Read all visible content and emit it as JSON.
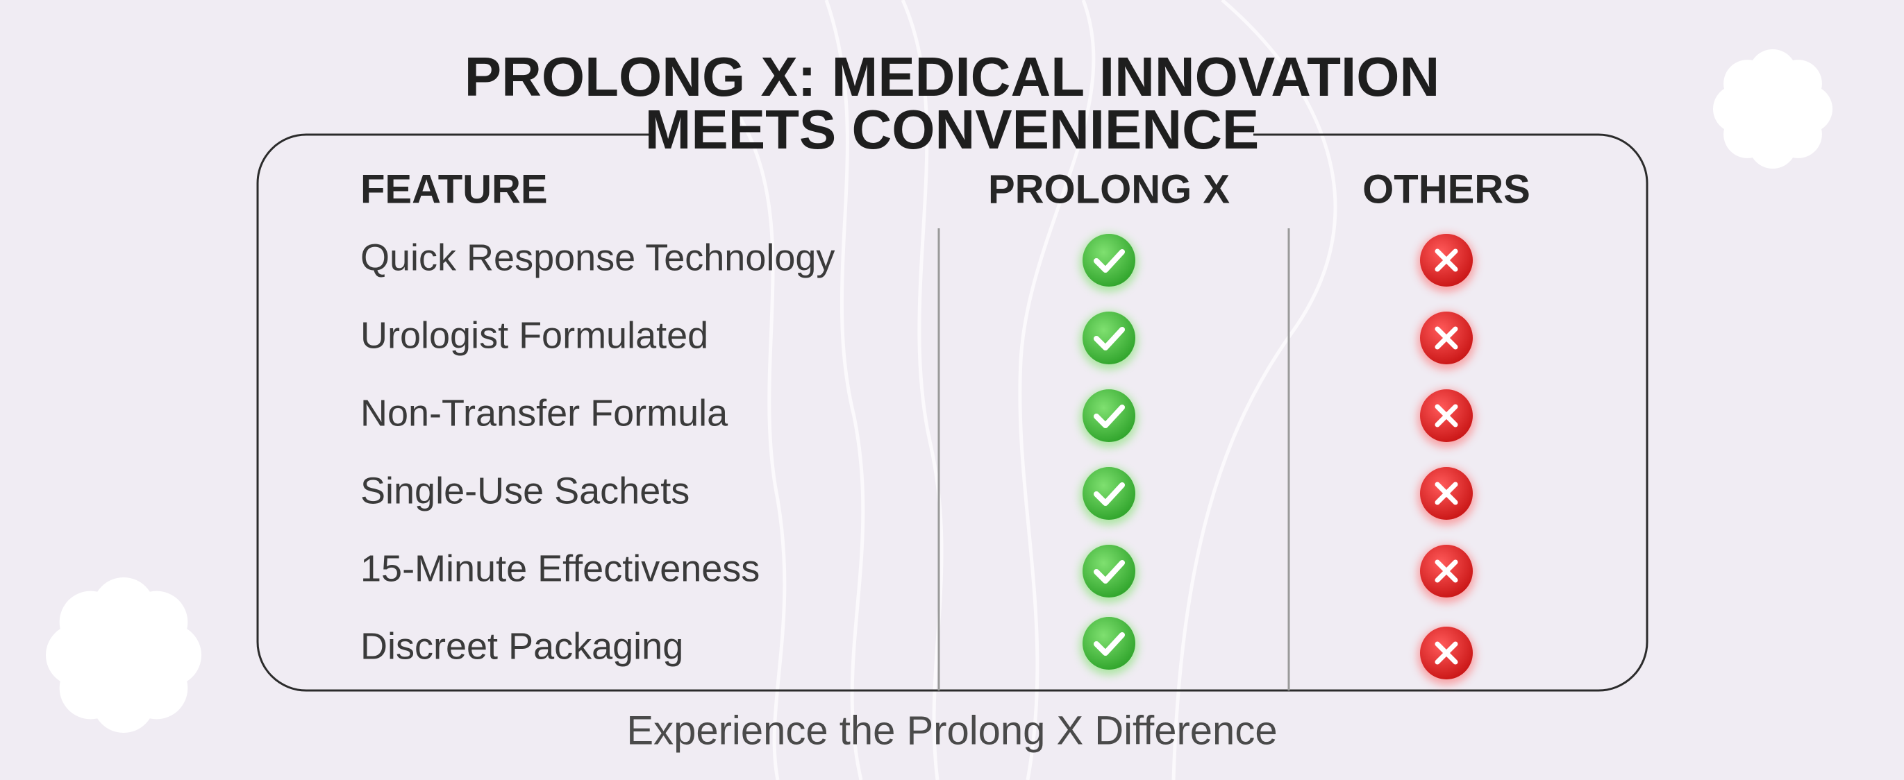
{
  "title": {
    "lines": [
      "PROLONG X: MEDICAL INNOVATION",
      "MEETS CONVENIENCE"
    ]
  },
  "table": {
    "columns": [
      "FEATURE",
      "PROLONG X",
      "OTHERS"
    ],
    "rows": [
      "Quick Response Technology",
      "Urologist Formulated",
      "Non-Transfer Formula",
      "Single-Use Sachets",
      "15-Minute Effectiveness",
      "Discreet Packaging"
    ]
  },
  "footer": "Experience the Prolong X Difference"
}
